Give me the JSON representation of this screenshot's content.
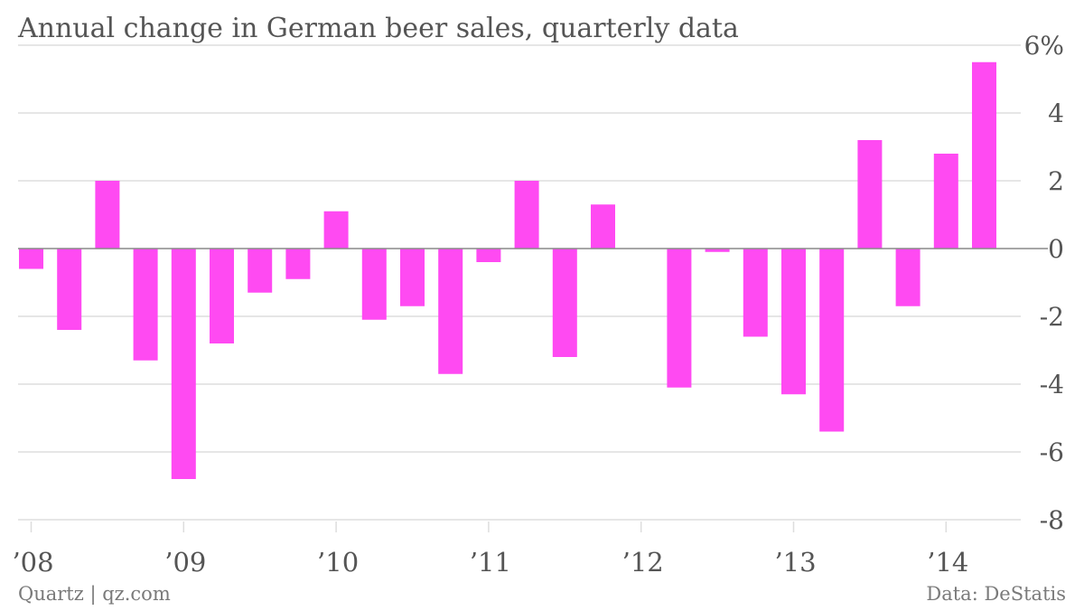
{
  "chart_data": {
    "type": "bar",
    "title": "Annual change in German beer sales, quarterly data",
    "xlabel": "",
    "ylabel": "",
    "ylim": [
      -8,
      6
    ],
    "y_ticks": [
      6,
      4,
      2,
      0,
      -2,
      -4,
      -6,
      -8
    ],
    "y_tick_labels": [
      "6%",
      "4",
      "2",
      "0",
      "-2",
      "-4",
      "-6",
      "-8"
    ],
    "x_tick_labels": [
      "’08",
      "’09",
      "’10",
      "’11",
      "’12",
      "’13",
      "’14"
    ],
    "categories": [
      "2008 Q1",
      "2008 Q2",
      "2008 Q3",
      "2008 Q4",
      "2009 Q1",
      "2009 Q2",
      "2009 Q3",
      "2009 Q4",
      "2010 Q1",
      "2010 Q2",
      "2010 Q3",
      "2010 Q4",
      "2011 Q1",
      "2011 Q2",
      "2011 Q3",
      "2011 Q4",
      "2012 Q1",
      "2012 Q2",
      "2012 Q3",
      "2012 Q4",
      "2013 Q1",
      "2013 Q2",
      "2013 Q3",
      "2013 Q4",
      "2014 Q1",
      "2014 Q2",
      "2014 Q3"
    ],
    "values": [
      -0.6,
      -2.4,
      2.0,
      -3.3,
      -6.8,
      -2.8,
      -1.3,
      -0.9,
      1.1,
      -2.1,
      -1.7,
      -3.7,
      -0.4,
      2.0,
      -3.2,
      1.3,
      0.0,
      -4.1,
      -0.1,
      -2.6,
      -4.3,
      -5.4,
      3.2,
      -1.7,
      2.8,
      5.5,
      0.0
    ],
    "grid": true,
    "colors": {
      "bar": "#ff4af2",
      "grid": "#dddddd",
      "zero_line": "#888888",
      "text": "#555555"
    }
  },
  "footer": {
    "source_left": "Quartz | qz.com",
    "source_right": "Data: DeStatis"
  }
}
